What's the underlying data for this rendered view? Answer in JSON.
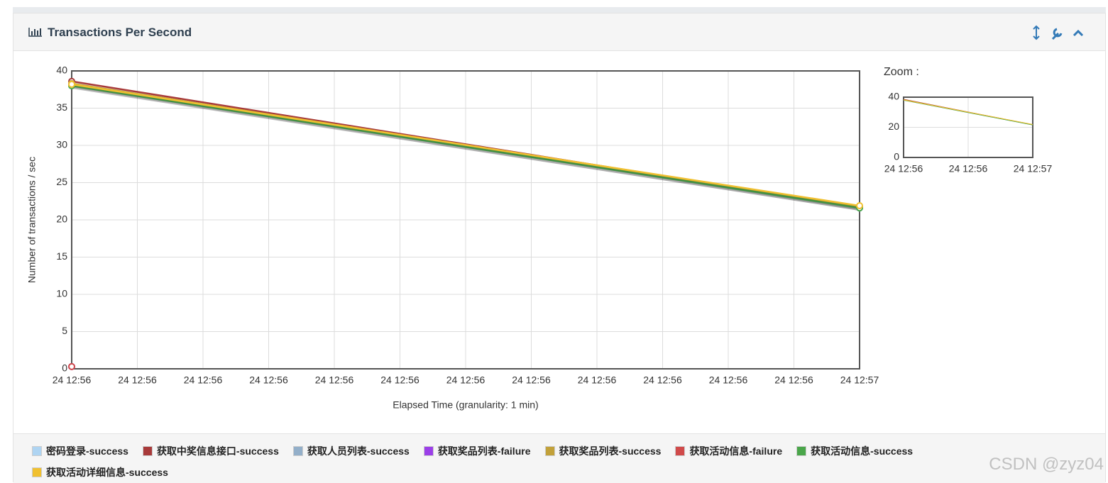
{
  "chart_data": {
    "type": "line",
    "title": "Transactions Per Second",
    "xlabel": "Elapsed Time (granularity: 1 min)",
    "ylabel": "Number of transactions / sec",
    "x": [
      0,
      12
    ],
    "xlim": [
      0,
      12
    ],
    "xticks": [
      {
        "value": 0,
        "label": "24 12:56"
      },
      {
        "value": 1,
        "label": "24 12:56"
      },
      {
        "value": 2,
        "label": "24 12:56"
      },
      {
        "value": 3,
        "label": "24 12:56"
      },
      {
        "value": 4,
        "label": "24 12:56"
      },
      {
        "value": 5,
        "label": "24 12:56"
      },
      {
        "value": 6,
        "label": "24 12:56"
      },
      {
        "value": 7,
        "label": "24 12:56"
      },
      {
        "value": 8,
        "label": "24 12:56"
      },
      {
        "value": 9,
        "label": "24 12:56"
      },
      {
        "value": 10,
        "label": "24 12:56"
      },
      {
        "value": 11,
        "label": "24 12:56"
      },
      {
        "value": 12,
        "label": "24 12:57"
      }
    ],
    "ylim": [
      0,
      40
    ],
    "yticks": [
      0,
      5,
      10,
      15,
      20,
      25,
      30,
      35,
      40
    ],
    "grid": true,
    "series": [
      {
        "name": "密码登录-success",
        "color": "#aed4f2",
        "values": [
          38.0,
          21.6
        ]
      },
      {
        "name": "获取中奖信息接口-success",
        "color": "#a83a3a",
        "values": [
          38.6,
          21.7
        ]
      },
      {
        "name": "获取人员列表-success",
        "color": "#93afc9",
        "values": [
          38.1,
          21.6
        ]
      },
      {
        "name": "获取奖品列表-failure",
        "color": "#9b3fe8",
        "values": [
          0.3,
          null
        ]
      },
      {
        "name": "获取奖品列表-success",
        "color": "#c2a13a",
        "values": [
          38.3,
          21.8
        ]
      },
      {
        "name": "获取活动信息-failure",
        "color": "#d04a4a",
        "values": [
          0.3,
          null
        ]
      },
      {
        "name": "获取活动信息-success",
        "color": "#4aa64a",
        "values": [
          38.0,
          21.6
        ]
      },
      {
        "name": "获取活动详细信息-success",
        "color": "#f0c030",
        "values": [
          38.2,
          21.9
        ]
      }
    ],
    "zoom": {
      "title": "Zoom :",
      "ylim": [
        0,
        40
      ],
      "yticks": [
        0,
        20,
        40
      ],
      "xticks": [
        {
          "value": 0,
          "label": "24 12:56"
        },
        {
          "value": 6,
          "label": "24 12:56"
        },
        {
          "value": 12,
          "label": "24 12:57"
        }
      ]
    }
  },
  "watermark": "CSDN @zyz04"
}
